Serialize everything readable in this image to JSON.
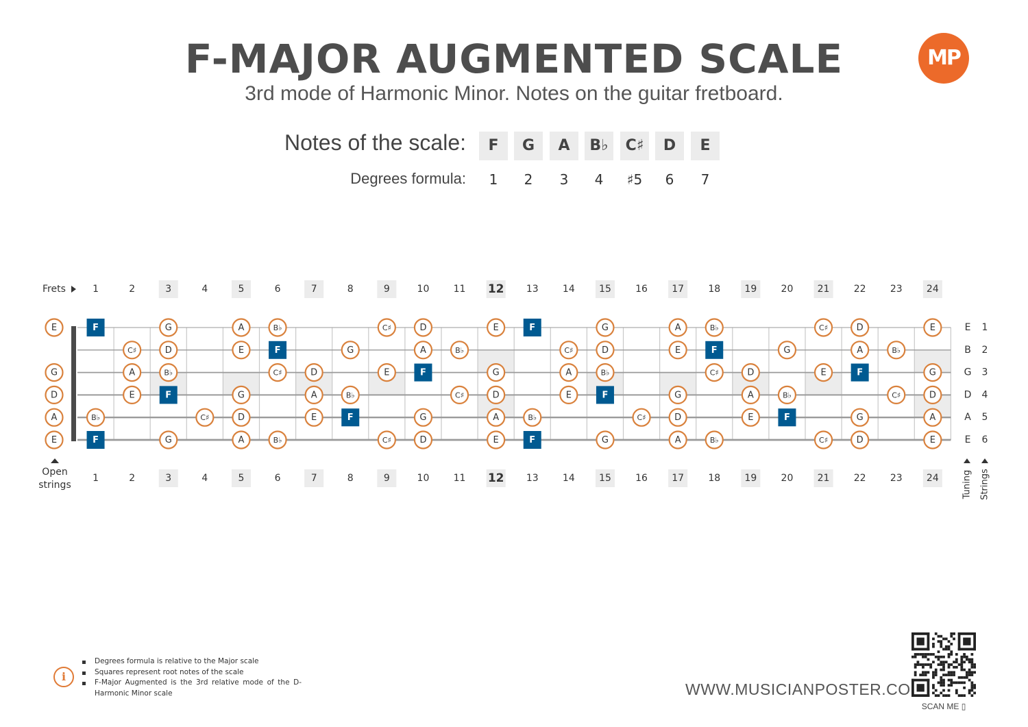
{
  "header": {
    "title": "F-MAJOR AUGMENTED SCALE",
    "subtitle": "3rd mode of Harmonic Minor. Notes on the guitar fretboard.",
    "logo_text": "MP"
  },
  "scale": {
    "notes_label": "Notes of the scale:",
    "degrees_label": "Degrees formula:",
    "notes": [
      "F",
      "G",
      "A",
      "B♭",
      "C♯",
      "D",
      "E"
    ],
    "degrees": [
      "1",
      "2",
      "3",
      "4",
      "♯5",
      "6",
      "7"
    ]
  },
  "fretboard": {
    "frets_label": "Frets",
    "open_label_1": "Open",
    "open_label_2": "strings",
    "tuning_label": "Tuning",
    "strings_label": "Strings",
    "fret_numbers": [
      "1",
      "2",
      "3",
      "4",
      "5",
      "6",
      "7",
      "8",
      "9",
      "10",
      "11",
      "12",
      "13",
      "14",
      "15",
      "16",
      "17",
      "18",
      "19",
      "20",
      "21",
      "22",
      "23",
      "24"
    ],
    "marker_frets": [
      3,
      5,
      7,
      9,
      12,
      15,
      17,
      19,
      21,
      24
    ],
    "root_note": "F",
    "accent_color": "#d9813c",
    "root_color": "#005a91",
    "strings": [
      {
        "number": "1",
        "tuning": "E",
        "open": "E",
        "notes": [
          "F",
          "",
          "G",
          "",
          "A",
          "B♭",
          "",
          "",
          "C♯",
          "D",
          "",
          "E",
          "F",
          "",
          "G",
          "",
          "A",
          "B♭",
          "",
          "",
          "C♯",
          "D",
          "",
          "E"
        ]
      },
      {
        "number": "2",
        "tuning": "B",
        "open": "",
        "notes": [
          "",
          "C♯",
          "D",
          "",
          "E",
          "F",
          "",
          "G",
          "",
          "A",
          "B♭",
          "",
          "",
          "C♯",
          "D",
          "",
          "E",
          "F",
          "",
          "G",
          "",
          "A",
          "B♭",
          ""
        ]
      },
      {
        "number": "3",
        "tuning": "G",
        "open": "G",
        "notes": [
          "",
          "A",
          "B♭",
          "",
          "",
          "C♯",
          "D",
          "",
          "E",
          "F",
          "",
          "G",
          "",
          "A",
          "B♭",
          "",
          "",
          "C♯",
          "D",
          "",
          "E",
          "F",
          "",
          "G"
        ]
      },
      {
        "number": "4",
        "tuning": "D",
        "open": "D",
        "notes": [
          "",
          "E",
          "F",
          "",
          "G",
          "",
          "A",
          "B♭",
          "",
          "",
          "C♯",
          "D",
          "",
          "E",
          "F",
          "",
          "G",
          "",
          "A",
          "B♭",
          "",
          "",
          "C♯",
          "D"
        ]
      },
      {
        "number": "5",
        "tuning": "A",
        "open": "A",
        "notes": [
          "B♭",
          "",
          "",
          "C♯",
          "D",
          "",
          "E",
          "F",
          "",
          "G",
          "",
          "A",
          "B♭",
          "",
          "",
          "C♯",
          "D",
          "",
          "E",
          "F",
          "",
          "G",
          "",
          "A"
        ]
      },
      {
        "number": "6",
        "tuning": "E",
        "open": "E",
        "notes": [
          "F",
          "",
          "G",
          "",
          "A",
          "B♭",
          "",
          "",
          "C♯",
          "D",
          "",
          "E",
          "F",
          "",
          "G",
          "",
          "A",
          "B♭",
          "",
          "",
          "C♯",
          "D",
          "",
          "E"
        ]
      }
    ]
  },
  "footer": {
    "info_icon": "info-icon",
    "notes": [
      "Degrees formula is relative to the Major scale",
      "Squares represent root notes of the scale",
      "F-Major Augmented is the 3rd relative mode of the D-Harmonic Minor scale"
    ],
    "website": "WWW.MUSICIANPOSTER.COM",
    "scan_label": "SCAN ME ▯"
  }
}
